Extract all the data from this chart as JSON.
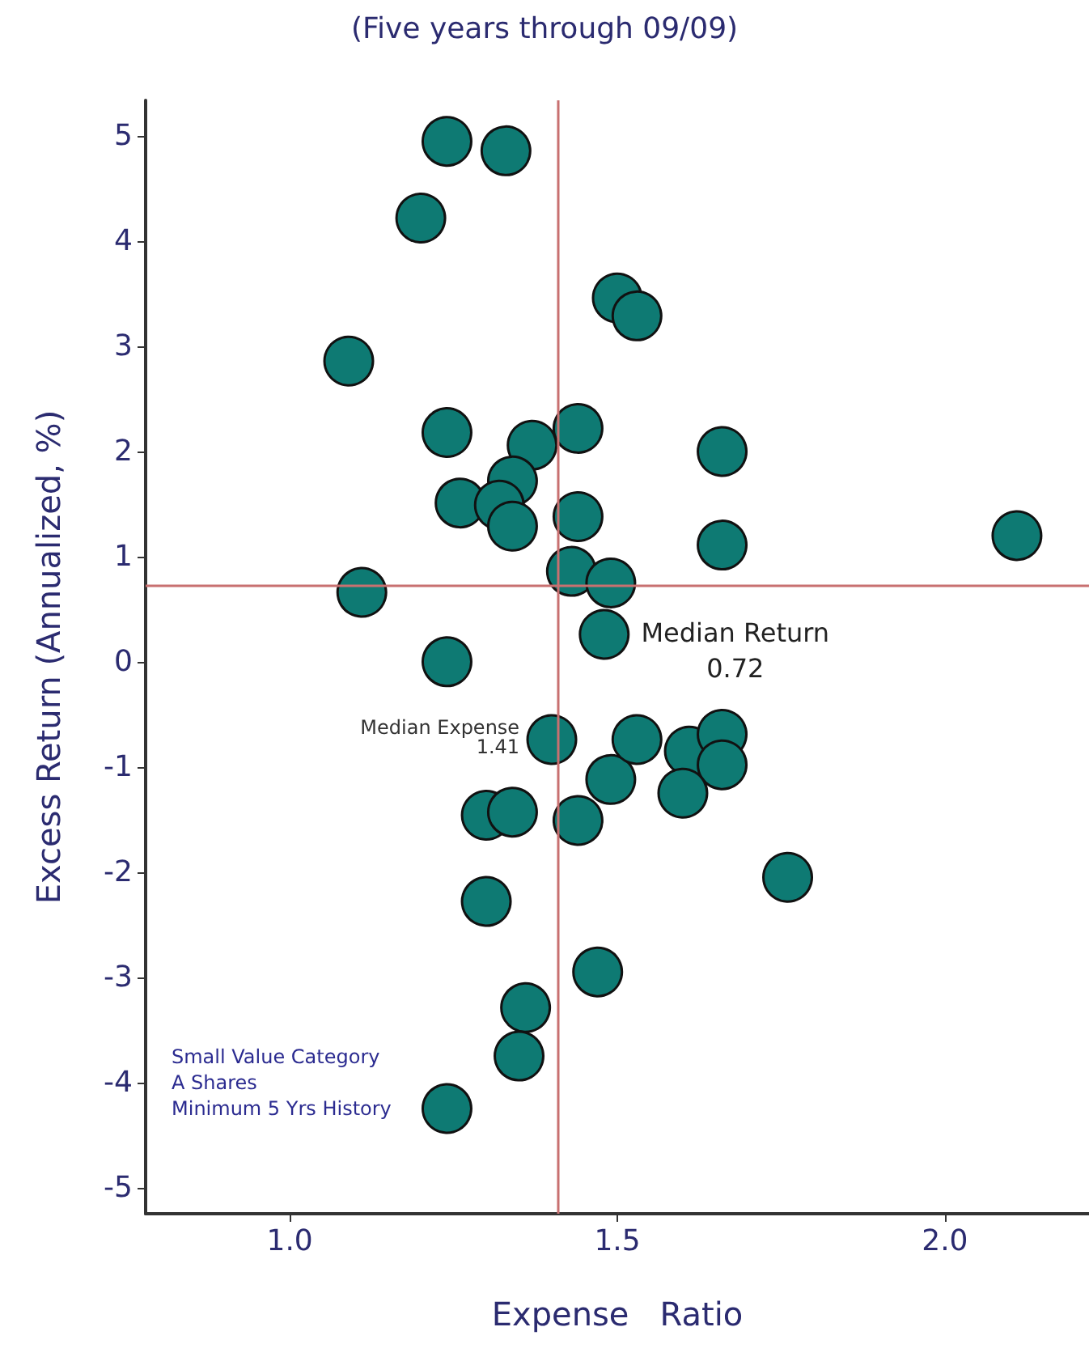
{
  "chart_data": {
    "type": "scatter",
    "title": "(Five years through 09/09)",
    "xlabel": "Expense   Ratio",
    "ylabel": "Excess Return (Annualized, %)",
    "x": [
      1.24,
      1.33,
      1.2,
      1.5,
      1.53,
      1.09,
      1.24,
      1.37,
      1.44,
      1.66,
      2.11,
      1.66,
      1.34,
      1.26,
      1.32,
      1.34,
      1.44,
      1.11,
      1.43,
      1.49,
      1.24,
      1.48,
      1.4,
      1.49,
      1.3,
      1.34,
      1.44,
      1.3,
      1.47,
      1.36,
      1.35,
      1.24,
      1.53,
      1.61,
      1.66,
      1.66,
      1.6,
      1.76
    ],
    "values": [
      4.95,
      4.86,
      4.22,
      3.46,
      3.29,
      2.86,
      2.18,
      2.06,
      2.22,
      2.0,
      1.2,
      1.11,
      1.72,
      1.51,
      1.49,
      1.29,
      1.38,
      0.66,
      0.86,
      0.75,
      0.0,
      0.26,
      -0.74,
      -1.12,
      -1.46,
      -1.43,
      -1.51,
      -2.28,
      -2.95,
      -3.29,
      -3.75,
      -4.25,
      -0.74,
      -0.85,
      -0.69,
      -0.98,
      -1.25,
      -2.05
    ],
    "color": "#0e7a73",
    "marker": "circle",
    "grid": false,
    "xlim": [
      0.78,
      2.22
    ],
    "xticks": [
      {
        "value": 1,
        "label": "1.0"
      },
      {
        "value": 1.5,
        "label": "1.5"
      },
      {
        "value": 2,
        "label": "2.0"
      }
    ],
    "ylim": [
      -5.25,
      5.34
    ],
    "yticks": [
      -5,
      -4,
      -3,
      -2,
      -1,
      0,
      1,
      2,
      3,
      4,
      5
    ],
    "ref_lines": [
      {
        "axis": "x",
        "value": 1.41,
        "label": "Median Expense\n1.41",
        "color": "#c87070"
      },
      {
        "axis": "y",
        "value": 0.72,
        "label": "Median Return\n0.72",
        "color": "#c87070"
      }
    ],
    "annotations": [
      "Small Value Category\nA Shares\nMinimum 5 Yrs History"
    ]
  }
}
